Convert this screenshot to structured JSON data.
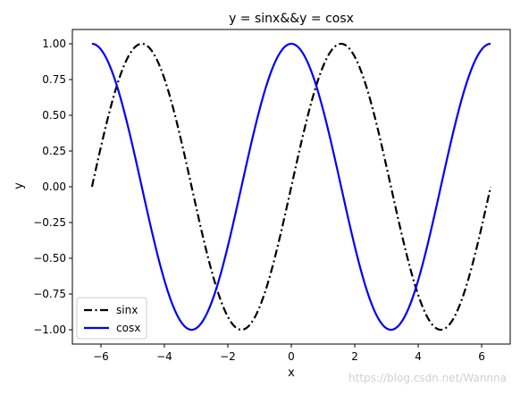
{
  "chart_data": {
    "type": "line",
    "title": "y = sinx&&y = cosx",
    "xlabel": "x",
    "ylabel": "y",
    "xlim": [
      -6.9,
      6.9
    ],
    "ylim": [
      -1.1,
      1.1
    ],
    "grid": false,
    "legend_position": "lower-left",
    "x_ticks": [
      -6,
      -4,
      -2,
      0,
      2,
      4,
      6
    ],
    "x_tick_labels": [
      "−6",
      "−4",
      "−2",
      "0",
      "2",
      "4",
      "6"
    ],
    "y_ticks": [
      -1.0,
      -0.75,
      -0.5,
      -0.25,
      0.0,
      0.25,
      0.5,
      0.75,
      1.0
    ],
    "y_tick_labels": [
      "−1.00",
      "−0.75",
      "−0.50",
      "−0.25",
      "0.00",
      "0.25",
      "0.50",
      "0.75",
      "1.00"
    ],
    "x_range": [
      -6.283,
      6.283
    ],
    "series": [
      {
        "name": "sinx",
        "function": "sin",
        "color": "#000000",
        "style": "dashdot"
      },
      {
        "name": "cosx",
        "function": "cos",
        "color": "#0000ff",
        "style": "solid"
      }
    ]
  },
  "watermark": "https://blog.csdn.net/Wannna"
}
